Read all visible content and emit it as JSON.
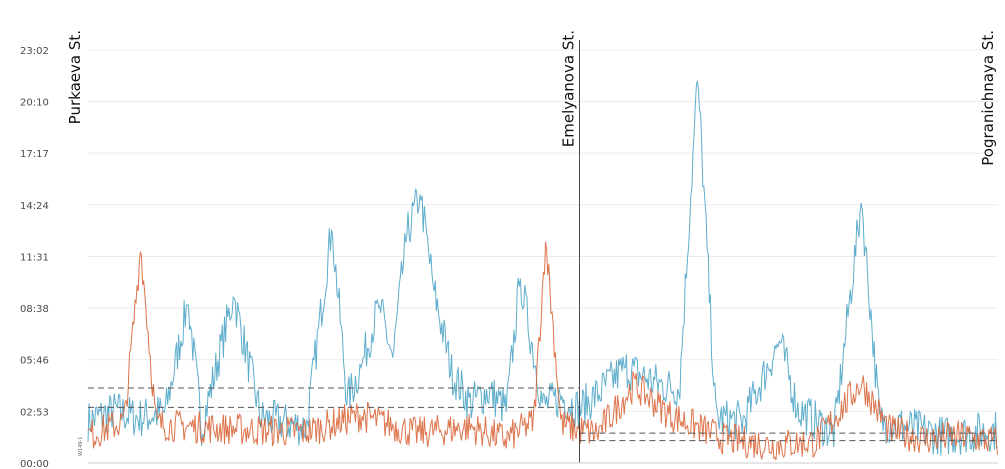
{
  "chart_data": {
    "type": "line",
    "title": "",
    "xlabel": "",
    "ylabel": "",
    "y_tick_labels": [
      "00:00",
      "02:53",
      "05:46",
      "08:38",
      "11:31",
      "14:24",
      "17:17",
      "20:10",
      "23:02"
    ],
    "y_tick_minutes": [
      0,
      173,
      346,
      518,
      691,
      864,
      1037,
      1210,
      1382
    ],
    "ylim": [
      0,
      1382
    ],
    "xlim": [
      0,
      1000
    ],
    "segment_labels": [
      "Purkaeva St.",
      "Emelyanova St.",
      "Pogranichnaya St."
    ],
    "segment_boundaries_x": [
      0,
      540,
      1000
    ],
    "grid": true,
    "legend": "none",
    "side_note": "W149-1",
    "colors": {
      "series_blue": "#4ea5c6",
      "series_orange": "#d9663a",
      "reference_lines": "#555555",
      "grid": "#ececec",
      "divider": "#222222"
    },
    "series": [
      {
        "values_description": "blue series",
        "points": [
          [
            0,
            140
          ],
          [
            30,
            175
          ],
          [
            55,
            150
          ],
          [
            85,
            170
          ],
          [
            110,
            540
          ],
          [
            125,
            120
          ],
          [
            160,
            560
          ],
          [
            190,
            150
          ],
          [
            240,
            120
          ],
          [
            268,
            790
          ],
          [
            285,
            210
          ],
          [
            300,
            320
          ],
          [
            320,
            530
          ],
          [
            335,
            350
          ],
          [
            350,
            760
          ],
          [
            365,
            900
          ],
          [
            380,
            580
          ],
          [
            400,
            300
          ],
          [
            420,
            200
          ],
          [
            440,
            240
          ],
          [
            460,
            180
          ],
          [
            475,
            620
          ],
          [
            500,
            190
          ],
          [
            520,
            220
          ],
          [
            540,
            180
          ],
          [
            560,
            230
          ],
          [
            590,
            320
          ],
          [
            610,
            290
          ],
          [
            630,
            260
          ],
          [
            650,
            250
          ],
          [
            670,
            1300
          ],
          [
            690,
            150
          ],
          [
            720,
            140
          ],
          [
            760,
            410
          ],
          [
            780,
            180
          ],
          [
            820,
            100
          ],
          [
            850,
            880
          ],
          [
            870,
            140
          ],
          [
            900,
            120
          ],
          [
            940,
            90
          ],
          [
            970,
            100
          ],
          [
            1000,
            110
          ]
        ]
      },
      {
        "values_description": "orange series",
        "points": [
          [
            0,
            90
          ],
          [
            40,
            140
          ],
          [
            58,
            720
          ],
          [
            75,
            130
          ],
          [
            120,
            120
          ],
          [
            180,
            110
          ],
          [
            240,
            105
          ],
          [
            300,
            160
          ],
          [
            360,
            100
          ],
          [
            420,
            120
          ],
          [
            460,
            80
          ],
          [
            490,
            140
          ],
          [
            503,
            750
          ],
          [
            520,
            130
          ],
          [
            540,
            110
          ],
          [
            560,
            100
          ],
          [
            600,
            260
          ],
          [
            640,
            160
          ],
          [
            700,
            80
          ],
          [
            750,
            60
          ],
          [
            800,
            70
          ],
          [
            850,
            270
          ],
          [
            880,
            110
          ],
          [
            920,
            80
          ],
          [
            960,
            90
          ],
          [
            1000,
            70
          ]
        ]
      }
    ],
    "reference_lines": [
      {
        "segment": 0,
        "y": 251
      },
      {
        "segment": 0,
        "y": 186
      },
      {
        "segment": 1,
        "y": 100
      },
      {
        "segment": 1,
        "y": 75
      }
    ]
  }
}
